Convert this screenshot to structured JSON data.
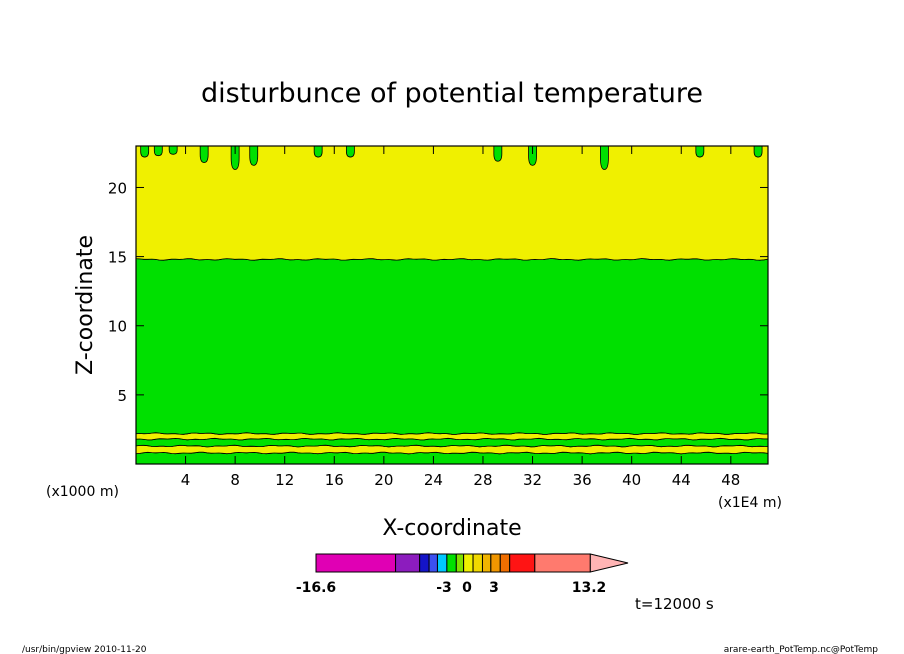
{
  "chart_data": {
    "type": "heatmap",
    "title": "disturbunce of potential temperature",
    "xlabel": "X-coordinate",
    "ylabel": "Z-coordinate",
    "x_axis_scale_note": "(x1000 m)",
    "x_axis_unit_note": "(x1E4 m)",
    "xlim": [
      0,
      51
    ],
    "ylim": [
      0,
      23
    ],
    "x_ticks": [
      4,
      8,
      12,
      16,
      20,
      24,
      28,
      32,
      36,
      40,
      44,
      48
    ],
    "y_ticks": [
      5,
      10,
      15,
      20
    ],
    "regions": [
      {
        "z_from": 0,
        "z_to": 0.8,
        "color": "#00e000"
      },
      {
        "z_from": 0.8,
        "z_to": 1.3,
        "color": "#f0f000"
      },
      {
        "z_from": 1.3,
        "z_to": 1.8,
        "color": "#00e000"
      },
      {
        "z_from": 1.8,
        "z_to": 2.2,
        "color": "#f0f000"
      },
      {
        "z_from": 2.2,
        "z_to": 14.8,
        "color": "#00e000"
      },
      {
        "z_from": 14.8,
        "z_to": 23,
        "color": "#f0f000"
      }
    ],
    "top_blobs": [
      {
        "x": 0.7,
        "z_top": 23,
        "z_bottom": 22.2
      },
      {
        "x": 1.8,
        "z_top": 23,
        "z_bottom": 22.3
      },
      {
        "x": 3.0,
        "z_top": 23,
        "z_bottom": 22.4
      },
      {
        "x": 5.5,
        "z_top": 23,
        "z_bottom": 21.8
      },
      {
        "x": 8.0,
        "z_top": 23,
        "z_bottom": 21.3
      },
      {
        "x": 9.5,
        "z_top": 23,
        "z_bottom": 21.6
      },
      {
        "x": 14.7,
        "z_top": 23,
        "z_bottom": 22.2
      },
      {
        "x": 17.3,
        "z_top": 23,
        "z_bottom": 22.2
      },
      {
        "x": 29.2,
        "z_top": 23,
        "z_bottom": 21.9
      },
      {
        "x": 32.0,
        "z_top": 23,
        "z_bottom": 21.6
      },
      {
        "x": 37.8,
        "z_top": 23,
        "z_bottom": 21.3
      },
      {
        "x": 45.5,
        "z_top": 23,
        "z_bottom": 22.2
      },
      {
        "x": 50.2,
        "z_top": 23,
        "z_bottom": 22.2
      }
    ],
    "colorbar": {
      "min_label": "-16.6",
      "max_label": "13.2",
      "inner_labels": [
        "-3",
        "0",
        "3"
      ],
      "segments": [
        {
          "lo": -16.6,
          "hi": -9.0,
          "color": "#e000b4"
        },
        {
          "lo": -9.0,
          "hi": -6.7,
          "color": "#8c1cbe"
        },
        {
          "lo": -6.7,
          "hi": -5.8,
          "color": "#1414c8"
        },
        {
          "lo": -5.8,
          "hi": -5.0,
          "color": "#3c50f0"
        },
        {
          "lo": -5.0,
          "hi": -4.1,
          "color": "#00c8ff"
        },
        {
          "lo": -4.1,
          "hi": -3.2,
          "color": "#00e000"
        },
        {
          "lo": -3.2,
          "hi": -2.5,
          "color": "#80e000"
        },
        {
          "lo": -2.5,
          "hi": -1.6,
          "color": "#f0f000"
        },
        {
          "lo": -1.6,
          "hi": -0.7,
          "color": "#f0d800"
        },
        {
          "lo": -0.7,
          "hi": 0.1,
          "color": "#f0b400"
        },
        {
          "lo": 0.1,
          "hi": 1.0,
          "color": "#f09600"
        },
        {
          "lo": 1.0,
          "hi": 1.9,
          "color": "#f06e00"
        },
        {
          "lo": 1.9,
          "hi": 4.3,
          "color": "#ff1414"
        },
        {
          "lo": 4.3,
          "hi": 9.6,
          "color": "#ff7a6e"
        },
        {
          "lo": 9.6,
          "hi": 13.2,
          "color": "#ffb4b4",
          "arrow": true
        }
      ]
    },
    "grid": false
  },
  "annotations": {
    "time": "t=12000 s",
    "footer_left": "/usr/bin/gpview  2010-11-20",
    "footer_right": "arare-earth_PotTemp.nc@PotTemp"
  }
}
